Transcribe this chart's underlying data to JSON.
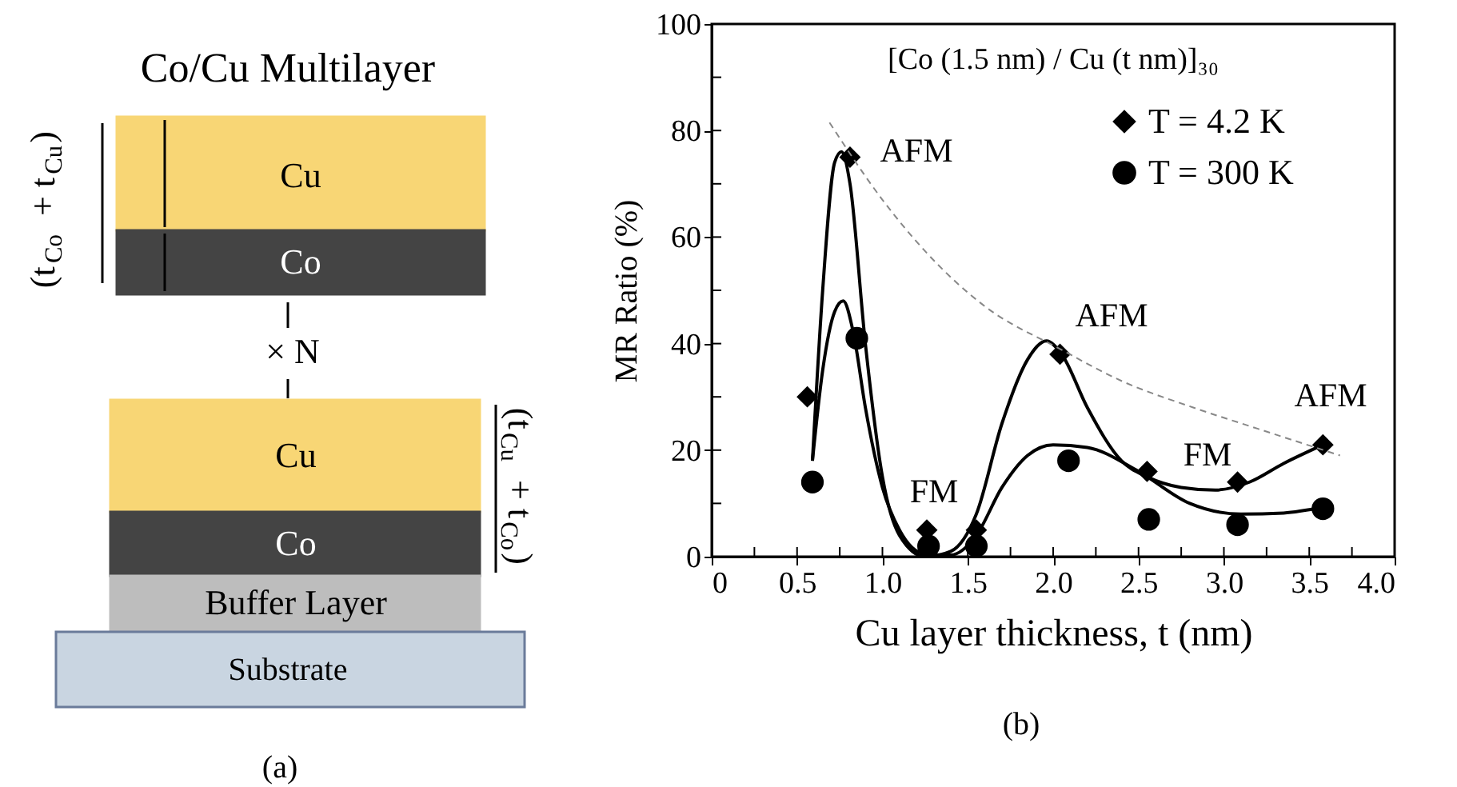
{
  "chart_data": [
    {
      "type": "other",
      "title": "Co/Cu Multilayer",
      "annotations": [
        "Cu",
        "Co",
        "× N",
        "Cu",
        "Co",
        "Buffer Layer",
        "Substrate",
        "(t$_{Co}$ + t$_{Cu}$)",
        "(t$_{Cu}$ + t$_{Co}$)",
        "(a)"
      ]
    },
    {
      "type": "scatter",
      "xlabel": "Cu layer thickness, t (nm)",
      "ylabel": "MR Ratio (%)",
      "xlim": [
        0,
        4
      ],
      "ylim": [
        0,
        100
      ],
      "xticks": [
        0,
        {
          "value": 0.25,
          "label": null
        },
        0.5,
        {
          "value": 0.75,
          "label": null
        },
        {
          "value": 1,
          "label": "1.0"
        },
        {
          "value": 1.25,
          "label": null
        },
        1.5,
        {
          "value": 1.75,
          "label": null
        },
        {
          "value": 2,
          "label": "2.0"
        },
        {
          "value": 2.25,
          "label": null
        },
        2.5,
        {
          "value": 2.75,
          "label": null
        },
        {
          "value": 3,
          "label": "3.0"
        },
        {
          "value": 3.25,
          "label": null
        },
        3.5,
        {
          "value": 3.75,
          "label": null
        },
        {
          "value": 4,
          "label": "4.0"
        }
      ],
      "yticks": [
        0,
        {
          "value": 10,
          "label": null
        },
        20,
        {
          "value": 30,
          "label": null
        },
        40,
        {
          "value": 50,
          "label": null
        },
        60,
        {
          "value": 70,
          "label": null
        },
        80,
        {
          "value": 90,
          "label": null
        },
        100
      ],
      "grid": false,
      "legend": "top right",
      "series": [
        {
          "name": "T = 4.2 K",
          "type": "scatter",
          "marker": "diamond",
          "color": "#000000",
          "x": [
            0.56,
            0.81,
            1.26,
            1.55,
            2.04,
            2.55,
            3.08,
            3.58
          ],
          "values": [
            30,
            75,
            5,
            5,
            38,
            16,
            14,
            21
          ]
        },
        {
          "name": "T = 300 K",
          "type": "scatter",
          "marker": "circle",
          "color": "#000000",
          "x": [
            0.59,
            0.85,
            1.27,
            1.55,
            2.09,
            2.56,
            3.08,
            3.58
          ],
          "values": [
            14,
            41,
            2,
            2,
            18,
            7,
            6,
            9
          ]
        },
        {
          "type": "line",
          "marker": "none",
          "line_style": "solid",
          "color": "#000000",
          "x": [
            0.59,
            0.65,
            0.72,
            0.76,
            0.81,
            0.9,
            1.0,
            1.1,
            1.25,
            1.4,
            1.55,
            1.7,
            1.85,
            1.96,
            2.05,
            2.2,
            2.4,
            2.55,
            2.75,
            2.95,
            3.15,
            3.35,
            3.58
          ],
          "values": [
            18,
            50,
            74,
            76,
            70,
            40,
            15,
            4,
            0,
            1,
            8,
            25,
            37,
            40.5,
            38,
            28,
            18,
            15,
            13,
            12.5,
            14,
            17.5,
            21
          ]
        },
        {
          "type": "line",
          "marker": "none",
          "line_style": "solid",
          "color": "#000000",
          "x": [
            0.59,
            0.65,
            0.72,
            0.77,
            0.83,
            0.9,
            1.0,
            1.1,
            1.25,
            1.4,
            1.55,
            1.7,
            1.85,
            2.0,
            2.2,
            2.5,
            2.8,
            3.1,
            3.35,
            3.58
          ],
          "values": [
            18,
            35,
            46,
            48,
            42,
            28,
            13,
            5,
            0.5,
            0.3,
            4,
            13,
            19,
            21,
            20.5,
            16,
            10,
            8,
            8.2,
            9.3
          ]
        },
        {
          "type": "line",
          "marker": "none",
          "line_style": "dashed",
          "color": "#888888",
          "x": [
            0.69,
            1.0,
            1.26,
            1.6,
            2.04,
            2.4,
            2.82,
            3.2,
            3.68
          ],
          "values": [
            81.5,
            67,
            57,
            47,
            39,
            33,
            28,
            24,
            19
          ]
        }
      ],
      "annotations": [
        "[Co (1.5 nm) / Cu (t nm)]₃₀",
        "(b)",
        "AFM",
        "AFM",
        "AFM",
        "FM",
        "FM"
      ]
    }
  ]
}
